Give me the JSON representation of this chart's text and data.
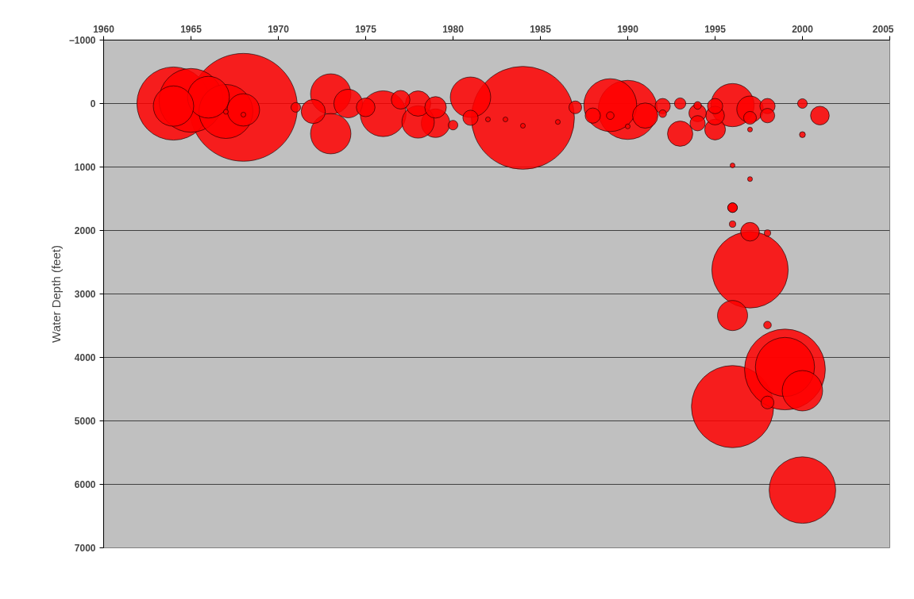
{
  "chart_data": {
    "type": "bubble",
    "ylabel": "Water Depth (feet)",
    "xlim": [
      1960,
      2005
    ],
    "xticks": [
      1960,
      1965,
      1970,
      1975,
      1980,
      1985,
      1990,
      1995,
      2000,
      2005
    ],
    "ylim": [
      7000,
      -1000
    ],
    "yticks": [
      -1000,
      0,
      1000,
      2000,
      3000,
      4000,
      5000,
      6000,
      7000
    ],
    "grid": "y",
    "series": [
      {
        "color": "#ff0000",
        "x": [
          1968,
          1984,
          1996,
          1999,
          1997,
          1964,
          2000,
          1965,
          1990,
          1999,
          1967,
          1989,
          1976,
          1996,
          1966,
          1964,
          1973,
          1973,
          1981,
          2000,
          1968,
          1996,
          1979,
          1978,
          1974,
          1997,
          1978,
          1972,
          1991,
          1979,
          1993,
          1995,
          1996,
          1975,
          1977,
          1997,
          1995,
          1994,
          1994,
          1988,
          1992,
          1995,
          1998,
          2001,
          1981,
          1998,
          1998,
          1987,
          1997,
          1993,
          1971,
          1980,
          1996,
          2000,
          1989,
          1994,
          1992,
          1998,
          1996,
          1998,
          2000,
          1982,
          1983,
          1984,
          1986,
          1990,
          1967,
          1968,
          1996,
          1997,
          1997
        ],
        "values": [
          60,
          225,
          4775,
          4190,
          2620,
          0,
          6090,
          -50,
          100,
          4150,
          125,
          25,
          160,
          25,
          -100,
          40,
          -150,
          475,
          -100,
          4525,
          100,
          3340,
          310,
          290,
          0,
          90,
          0,
          125,
          190,
          60,
          475,
          410,
          1640,
          60,
          -60,
          2020,
          190,
          150,
          310,
          190,
          40,
          40,
          40,
          190,
          225,
          190,
          4710,
          60,
          225,
          0,
          60,
          340,
          1640,
          0,
          190,
          30,
          160,
          2040,
          1900,
          3490,
          490,
          250,
          250,
          350,
          290,
          360,
          130,
          175,
          975,
          410,
          1190
        ],
        "sizes": [
          1,
          0.91,
          0.58,
          0.56,
          0.5,
          0.46,
          0.38,
          0.35,
          0.3,
          0.3,
          0.25,
          0.24,
          0.18,
          0.16,
          0.15,
          0.14,
          0.14,
          0.14,
          0.14,
          0.14,
          0.09,
          0.078,
          0.07,
          0.09,
          0.07,
          0.06,
          0.055,
          0.05,
          0.055,
          0.04,
          0.055,
          0.037,
          0.008,
          0.03,
          0.03,
          0.03,
          0.03,
          0.026,
          0.02,
          0.02,
          0.02,
          0.02,
          0.02,
          0.03,
          0.02,
          0.018,
          0.014,
          0.014,
          0.014,
          0.011,
          0.008,
          0.008,
          0.008,
          0.008,
          0.005,
          0.005,
          0.005,
          0.0035,
          0.0035,
          0.005,
          0.003,
          0.002,
          0.002,
          0.002,
          0.002,
          0.002,
          0.002,
          0.002,
          0.002,
          0.002,
          0.002
        ]
      }
    ]
  }
}
